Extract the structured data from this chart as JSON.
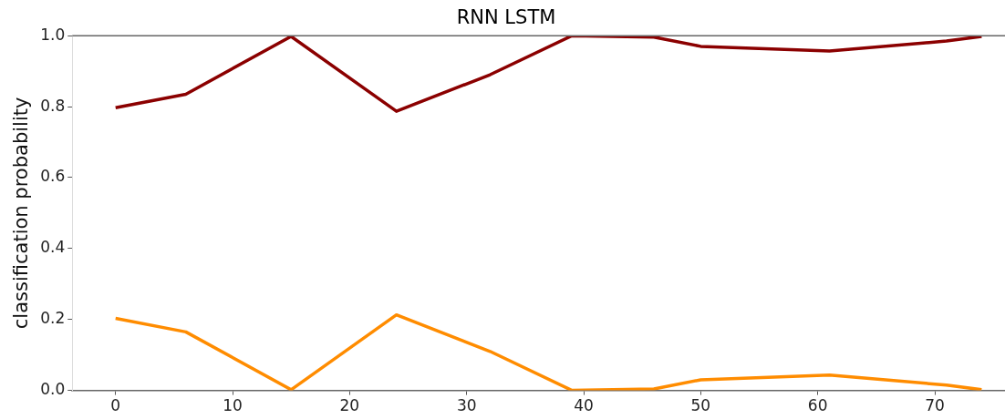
{
  "chart_data": {
    "type": "line",
    "title": "RNN LSTM",
    "ylabel": "classification probability",
    "x": [
      0,
      6,
      15,
      24,
      32,
      39,
      46,
      50,
      61,
      71,
      74
    ],
    "series": [
      {
        "color": "#8b0000",
        "values": [
          0.797,
          0.835,
          0.998,
          0.787,
          0.89,
          1.0,
          0.996,
          0.97,
          0.957,
          0.985,
          0.998
        ]
      },
      {
        "color": "#ff8c00",
        "values": [
          0.203,
          0.165,
          0.002,
          0.213,
          0.11,
          0.0,
          0.004,
          0.03,
          0.043,
          0.015,
          0.002
        ]
      }
    ],
    "xlim": [
      -3.7,
      76
    ],
    "ylim": [
      0,
      1
    ],
    "xticks": [
      0,
      10,
      20,
      30,
      40,
      50,
      60,
      70
    ],
    "yticks": [
      {
        "value": 0,
        "label": "0.0"
      },
      0.2,
      0.4,
      0.6,
      0.8,
      {
        "value": 1,
        "label": "1.0"
      }
    ],
    "grid": false,
    "legend": false
  }
}
